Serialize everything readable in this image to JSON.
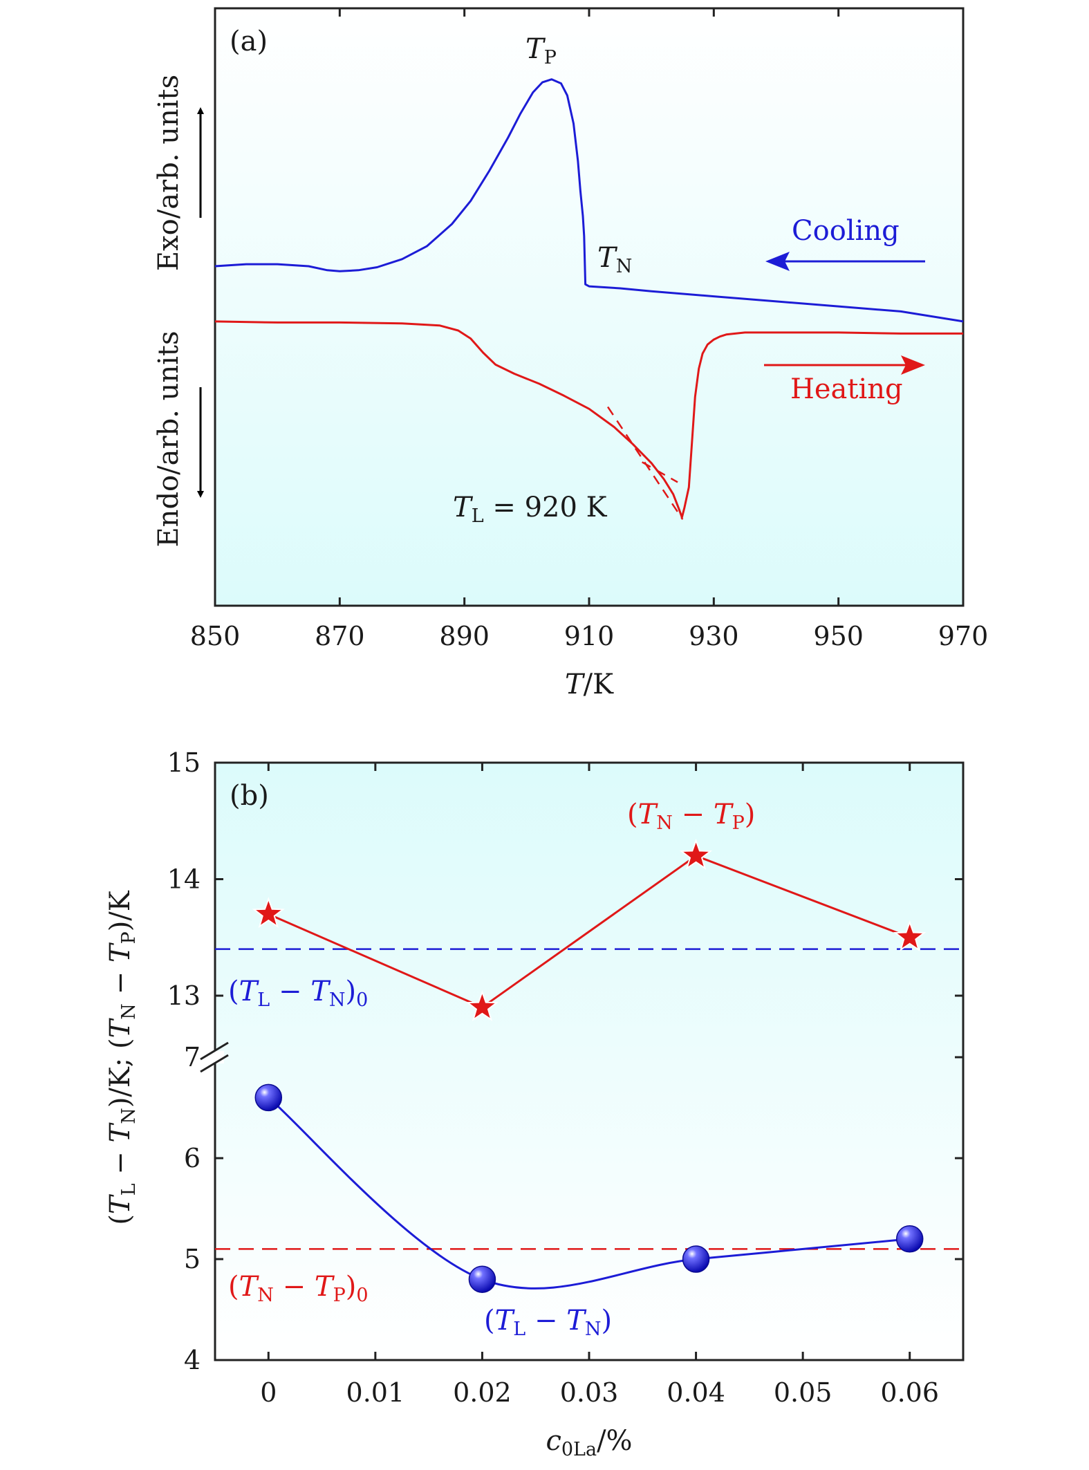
{
  "chart_data": [
    {
      "type": "line",
      "panel_label": "(a)",
      "xlabel_italic": "T",
      "xlabel_unit": "/K",
      "x_ticks": [
        850,
        870,
        890,
        910,
        930,
        950,
        970
      ],
      "xlim": [
        850,
        970
      ],
      "ylabel_upper": "Exo/arb. units",
      "ylabel_lower": "Endo/arb. units",
      "background_gradient": [
        "#ffffff",
        "#dcfbfb"
      ],
      "series": [
        {
          "name": "Cooling",
          "color": "#1c1cd6",
          "x": [
            850,
            855,
            860,
            865,
            868,
            870,
            873,
            876,
            880,
            884,
            888,
            891,
            894,
            897,
            899,
            901,
            902.5,
            904,
            905.5,
            906.5,
            907.5,
            908.2,
            908.6,
            909,
            909.2,
            909.4,
            910,
            915,
            920,
            930,
            940,
            950,
            960,
            970
          ],
          "y": [
            0.0,
            0.02,
            0.02,
            0.0,
            -0.04,
            -0.05,
            -0.04,
            -0.01,
            0.07,
            0.2,
            0.42,
            0.65,
            0.95,
            1.28,
            1.52,
            1.73,
            1.83,
            1.86,
            1.82,
            1.7,
            1.42,
            1.05,
            0.75,
            0.5,
            0.3,
            -0.18,
            -0.2,
            -0.22,
            -0.25,
            -0.3,
            -0.35,
            -0.4,
            -0.45,
            -0.55
          ]
        },
        {
          "name": "Heating",
          "color": "#e01818",
          "x": [
            850,
            860,
            870,
            880,
            886,
            889,
            891,
            893,
            895,
            898,
            902,
            906,
            910,
            914,
            917,
            920,
            922,
            923.5,
            924.5,
            924.9,
            925.3,
            926,
            926.5,
            927,
            927.6,
            928.2,
            929,
            930,
            931,
            932,
            935,
            940,
            950,
            960,
            970
          ],
          "y": [
            -0.55,
            -0.56,
            -0.56,
            -0.57,
            -0.59,
            -0.64,
            -0.72,
            -0.86,
            -0.98,
            -1.07,
            -1.17,
            -1.29,
            -1.42,
            -1.6,
            -1.77,
            -1.96,
            -2.12,
            -2.27,
            -2.43,
            -2.5,
            -2.4,
            -2.2,
            -1.75,
            -1.3,
            -1.02,
            -0.87,
            -0.78,
            -0.73,
            -0.7,
            -0.68,
            -0.66,
            -0.66,
            -0.66,
            -0.67,
            -0.67
          ]
        }
      ],
      "tangent_lines": [
        {
          "x": [
            913,
            925
          ],
          "y": [
            -1.4,
            -2.52
          ]
        },
        {
          "x": [
            918.5,
            924.2
          ],
          "y": [
            -1.95,
            -2.15
          ]
        }
      ],
      "annotations": {
        "TP": {
          "main": "T",
          "sub": "P"
        },
        "TN": {
          "main": "T",
          "sub": "N"
        },
        "TL": {
          "main": "T",
          "sub": "L",
          "rest": " = 920 K"
        },
        "cooling": "Cooling",
        "heating": "Heating"
      }
    },
    {
      "type": "line",
      "panel_label": "(b)",
      "xlabel_main": "c",
      "xlabel_sub": "0La",
      "xlabel_unit": "/%",
      "x_ticks": [
        0,
        0.01,
        0.02,
        0.03,
        0.04,
        0.05,
        0.06
      ],
      "x_tick_labels": [
        "0",
        "0.01",
        "0.02",
        "0.03",
        "0.04",
        "0.05",
        "0.06"
      ],
      "xlim": [
        -0.005,
        0.065
      ],
      "broken_y_axis": true,
      "upper_ylim": [
        12.5,
        15
      ],
      "upper_ticks": [
        13,
        14,
        15
      ],
      "lower_ylim": [
        4,
        7
      ],
      "lower_ticks": [
        4,
        5,
        6,
        7
      ],
      "ylabel": "(T_L − T_N)/K; (T_N − T_P)/K",
      "ylabel_parts": [
        "(",
        "T",
        "L",
        " − ",
        "T",
        "N",
        ")/K; (",
        "T",
        "N",
        " − ",
        "T",
        "P",
        ")/K"
      ],
      "background_gradient": [
        "#dcfbfb",
        "#ffffff"
      ],
      "series": [
        {
          "name": "(T_N − T_P)",
          "label_parts": [
            "(",
            "T",
            "N",
            " − ",
            "T",
            "P",
            ")"
          ],
          "color": "#e01818",
          "marker": "star",
          "x": [
            0,
            0.02,
            0.04,
            0.06
          ],
          "y": [
            13.7,
            12.9,
            14.2,
            13.5
          ]
        },
        {
          "name": "(T_L − T_N)",
          "label_parts": [
            "(",
            "T",
            "L",
            " − ",
            "T",
            "N",
            ")"
          ],
          "color": "#1c1cd6",
          "marker": "sphere",
          "smooth": true,
          "x": [
            0,
            0.02,
            0.04,
            0.06
          ],
          "y": [
            6.6,
            4.8,
            5.0,
            5.2
          ]
        }
      ],
      "reference_lines": [
        {
          "name": "(T_L − T_N)_0",
          "label_parts": [
            "(",
            "T",
            "L",
            " − ",
            "T",
            "N",
            ")",
            "0"
          ],
          "color": "#1c1cd6",
          "style": "dashed",
          "y": 13.4
        },
        {
          "name": "(T_N − T_P)_0",
          "label_parts": [
            "(",
            "T",
            "N",
            " − ",
            "T",
            "P",
            ")",
            "0"
          ],
          "color": "#e01818",
          "style": "dashed",
          "y": 5.1
        }
      ]
    }
  ]
}
